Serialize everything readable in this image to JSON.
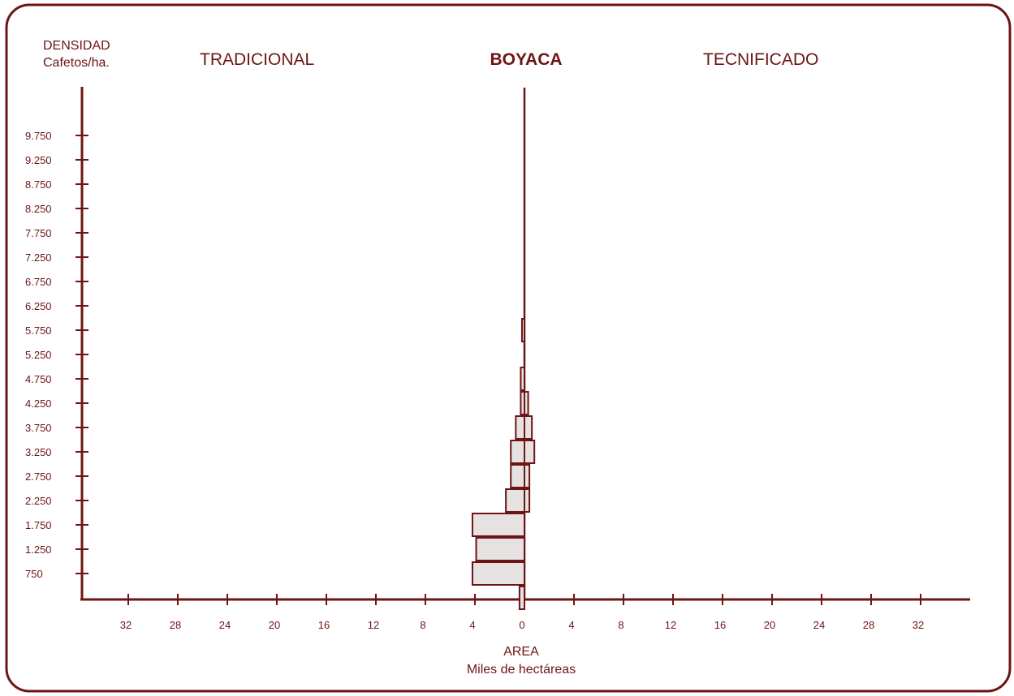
{
  "colors": {
    "ink": "#6d1414",
    "bar_fill": "#e6e2e2"
  },
  "chart_data": {
    "type": "bar",
    "orientation": "horizontal-back-to-back",
    "title": "BOYACA",
    "left_label": "TRADICIONAL",
    "right_label": "TECNIFICADO",
    "ylabel_line1": "DENSIDAD",
    "ylabel_line2": "Cafetos/ha.",
    "xlabel_line1": "AREA",
    "xlabel_line2": "Miles de hectáreas",
    "y_ticks": [
      "750",
      "1.250",
      "1.750",
      "2.250",
      "2.750",
      "3.250",
      "3.750",
      "4.250",
      "4.750",
      "5.250",
      "5.750",
      "6.250",
      "6.750",
      "7.250",
      "7.750",
      "8.250",
      "8.750",
      "9.250",
      "9.750"
    ],
    "x_ticks_left": [
      "32",
      "28",
      "24",
      "20",
      "16",
      "12",
      "8",
      "4",
      "0"
    ],
    "x_ticks_right": [
      "4",
      "8",
      "12",
      "16",
      "20",
      "24",
      "28",
      "32"
    ],
    "xlim": [
      -36,
      36
    ],
    "categories": [
      "500",
      "750",
      "1.250",
      "1.750",
      "2.250",
      "2.750",
      "3.250",
      "3.750",
      "4.250",
      "4.750",
      "5.250",
      "5.750",
      "6.250"
    ],
    "series": [
      {
        "name": "TRADICIONAL",
        "values": [
          0.4,
          4.2,
          3.9,
          4.2,
          1.5,
          1.1,
          1.1,
          0.7,
          0.3,
          0.3,
          0.0,
          0.2,
          0.0
        ]
      },
      {
        "name": "TECNIFICADO",
        "values": [
          0.0,
          0.0,
          0.0,
          0.0,
          0.4,
          0.4,
          0.8,
          0.6,
          0.3,
          0.0,
          0.0,
          0.0,
          0.0
        ]
      }
    ]
  }
}
